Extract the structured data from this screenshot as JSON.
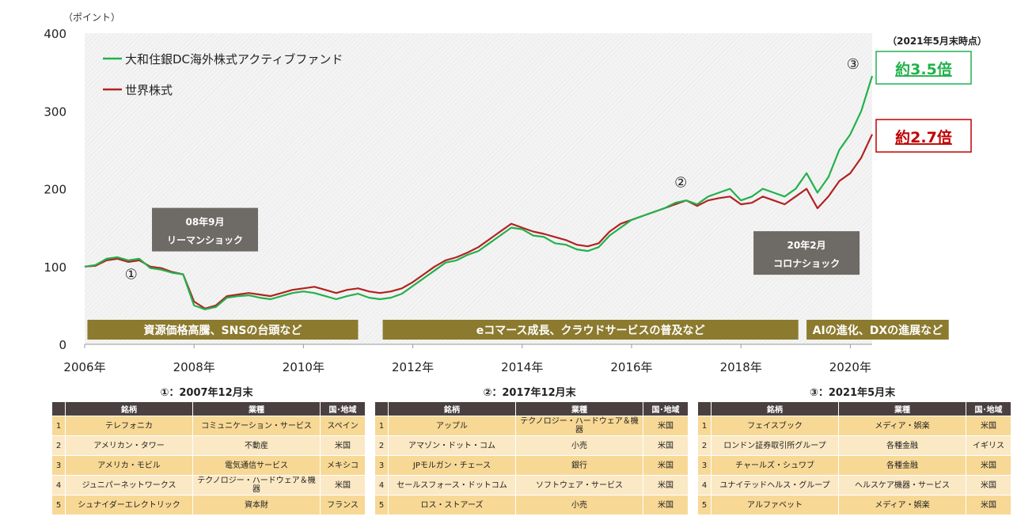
{
  "chart_data": {
    "type": "line",
    "y_unit_label": "（ポイント）",
    "ylim": [
      0,
      400
    ],
    "y_ticks": [
      "0",
      "100",
      "200",
      "300",
      "400"
    ],
    "x_ticks": [
      "2006年",
      "2008年",
      "2010年",
      "2012年",
      "2014年",
      "2016年",
      "2018年",
      "2020年"
    ],
    "x_tick_years": [
      2006,
      2008,
      2010,
      2012,
      2014,
      2016,
      2018,
      2020
    ],
    "x_range_years": [
      2006.0,
      2020.4
    ],
    "date_note": "（2021年5月末時点）",
    "series": [
      {
        "name": "大和住銀DC海外株式アクティブファンド",
        "color": "#22b14c",
        "x": [
          2006.0,
          2006.2,
          2006.4,
          2006.6,
          2006.8,
          2007.0,
          2007.2,
          2007.4,
          2007.6,
          2007.8,
          2008.0,
          2008.2,
          2008.4,
          2008.6,
          2008.8,
          2009.0,
          2009.2,
          2009.4,
          2009.6,
          2009.8,
          2010.0,
          2010.2,
          2010.4,
          2010.6,
          2010.8,
          2011.0,
          2011.2,
          2011.4,
          2011.6,
          2011.8,
          2012.0,
          2012.2,
          2012.4,
          2012.6,
          2012.8,
          2013.0,
          2013.2,
          2013.4,
          2013.6,
          2013.8,
          2014.0,
          2014.2,
          2014.4,
          2014.6,
          2014.8,
          2015.0,
          2015.2,
          2015.4,
          2015.6,
          2015.8,
          2016.0,
          2016.2,
          2016.4,
          2016.6,
          2016.8,
          2017.0,
          2017.2,
          2017.4,
          2017.6,
          2017.8,
          2018.0,
          2018.2,
          2018.4,
          2018.6,
          2018.8,
          2019.0,
          2019.2,
          2019.4,
          2019.6,
          2019.8,
          2020.0,
          2020.2,
          2020.4
        ],
        "values": [
          100,
          102,
          110,
          112,
          108,
          110,
          98,
          96,
          92,
          90,
          50,
          45,
          48,
          60,
          62,
          63,
          60,
          58,
          62,
          66,
          68,
          66,
          62,
          58,
          62,
          65,
          60,
          58,
          60,
          65,
          75,
          85,
          95,
          105,
          108,
          115,
          120,
          130,
          140,
          150,
          148,
          140,
          138,
          130,
          128,
          122,
          120,
          125,
          140,
          150,
          160,
          165,
          170,
          175,
          182,
          185,
          180,
          190,
          195,
          200,
          185,
          190,
          200,
          195,
          190,
          200,
          220,
          195,
          215,
          250,
          270,
          300,
          345
        ]
      },
      {
        "name": "世界株式",
        "color": "#b22222",
        "x": [
          2006.0,
          2006.2,
          2006.4,
          2006.6,
          2006.8,
          2007.0,
          2007.2,
          2007.4,
          2007.6,
          2007.8,
          2008.0,
          2008.2,
          2008.4,
          2008.6,
          2008.8,
          2009.0,
          2009.2,
          2009.4,
          2009.6,
          2009.8,
          2010.0,
          2010.2,
          2010.4,
          2010.6,
          2010.8,
          2011.0,
          2011.2,
          2011.4,
          2011.6,
          2011.8,
          2012.0,
          2012.2,
          2012.4,
          2012.6,
          2012.8,
          2013.0,
          2013.2,
          2013.4,
          2013.6,
          2013.8,
          2014.0,
          2014.2,
          2014.4,
          2014.6,
          2014.8,
          2015.0,
          2015.2,
          2015.4,
          2015.6,
          2015.8,
          2016.0,
          2016.2,
          2016.4,
          2016.6,
          2016.8,
          2017.0,
          2017.2,
          2017.4,
          2017.6,
          2017.8,
          2018.0,
          2018.2,
          2018.4,
          2018.6,
          2018.8,
          2019.0,
          2019.2,
          2019.4,
          2019.6,
          2019.8,
          2020.0,
          2020.2,
          2020.4
        ],
        "values": [
          100,
          101,
          108,
          110,
          106,
          108,
          100,
          98,
          93,
          90,
          55,
          46,
          50,
          62,
          64,
          66,
          64,
          62,
          66,
          70,
          72,
          74,
          70,
          66,
          70,
          72,
          68,
          66,
          68,
          72,
          80,
          90,
          100,
          108,
          112,
          118,
          125,
          135,
          145,
          155,
          150,
          145,
          142,
          138,
          134,
          128,
          126,
          130,
          145,
          155,
          160,
          165,
          170,
          175,
          180,
          185,
          178,
          185,
          188,
          190,
          180,
          182,
          190,
          185,
          180,
          190,
          200,
          175,
          190,
          210,
          220,
          240,
          270
        ]
      }
    ],
    "annotations": [
      {
        "label": "①",
        "x": 2006.85,
        "y": 84
      },
      {
        "label": "②",
        "x": 2016.9,
        "y": 202
      },
      {
        "label": "③",
        "x": 2020.05,
        "y": 354
      }
    ],
    "event_boxes": [
      {
        "title": "08年9月",
        "subtitle": "リーマンショック",
        "x": 2008.2,
        "y": 150
      },
      {
        "title": "20年2月",
        "subtitle": "コロナショック",
        "x": 2019.2,
        "y": 120
      }
    ],
    "era_bands": [
      {
        "label": "資源価格高騰、SNSの台頭など",
        "x0": 2006.05,
        "x1": 2011.0
      },
      {
        "label": "eコマース成長、クラウドサービスの普及など",
        "x0": 2011.45,
        "x1": 2019.05
      },
      {
        "label": "AIの進化、DXの進展など",
        "x0": 2019.2,
        "x1": 2021.8
      }
    ],
    "multipliers": [
      {
        "label": "約3.5倍",
        "series": 0,
        "color": "#22b14c"
      },
      {
        "label": "約2.7倍",
        "series": 1,
        "color": "#c00000"
      }
    ]
  },
  "tables": [
    {
      "title": "①：2007年12月末",
      "headers": [
        "",
        "銘柄",
        "業種",
        "国･地域"
      ],
      "rows": [
        [
          "1",
          "テレフォニカ",
          "コミュニケーション・サービス",
          "スペイン"
        ],
        [
          "2",
          "アメリカン・タワー",
          "不動産",
          "米国"
        ],
        [
          "3",
          "アメリカ・モビル",
          "電気通信サービス",
          "メキシコ"
        ],
        [
          "4",
          "ジュニパーネットワークス",
          "テクノロジー・ハードウェア＆機器",
          "米国"
        ],
        [
          "5",
          "シュナイダーエレクトリック",
          "資本財",
          "フランス"
        ]
      ]
    },
    {
      "title": "②：2017年12月末",
      "headers": [
        "",
        "銘柄",
        "業種",
        "国･地域"
      ],
      "rows": [
        [
          "1",
          "アップル",
          "テクノロジー・ハードウェア＆機器",
          "米国"
        ],
        [
          "2",
          "アマゾン・ドット・コム",
          "小売",
          "米国"
        ],
        [
          "3",
          "JPモルガン・チェース",
          "銀行",
          "米国"
        ],
        [
          "4",
          "セールスフォース・ドットコム",
          "ソフトウェア・サービス",
          "米国"
        ],
        [
          "5",
          "ロス・ストアーズ",
          "小売",
          "米国"
        ]
      ]
    },
    {
      "title": "③：2021年5月末",
      "headers": [
        "",
        "銘柄",
        "業種",
        "国･地域"
      ],
      "rows": [
        [
          "1",
          "フェイスブック",
          "メディア・娯楽",
          "米国"
        ],
        [
          "2",
          "ロンドン証券取引所グループ",
          "各種金融",
          "イギリス"
        ],
        [
          "3",
          "チャールズ・シュワブ",
          "各種金融",
          "米国"
        ],
        [
          "4",
          "ユナイテッドヘルス・グループ",
          "ヘルスケア機器・サービス",
          "米国"
        ],
        [
          "5",
          "アルファベット",
          "メディア・娯楽",
          "米国"
        ]
      ]
    }
  ]
}
